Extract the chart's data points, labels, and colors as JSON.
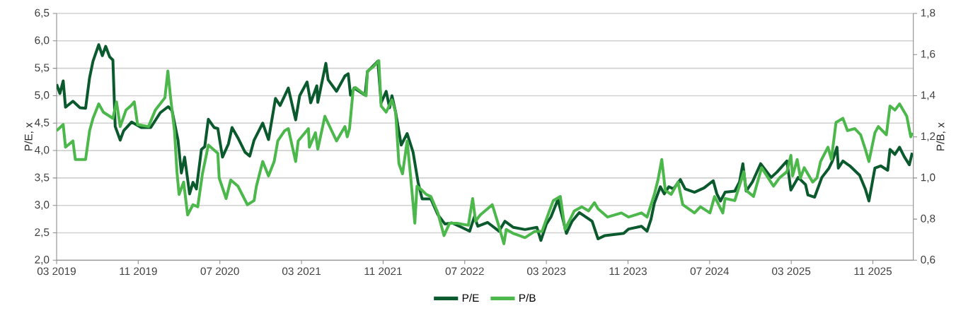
{
  "chart_data": {
    "type": "line",
    "ylabel": "P/E, x",
    "y2label": "P/B, x",
    "xlim": [
      "2019-03-01",
      "2026-02-28"
    ],
    "xticks": [
      {
        "value": "2019-03",
        "label": "03 2019"
      },
      {
        "value": "2019-11",
        "label": "11 2019"
      },
      {
        "value": "2020-07",
        "label": "07 2020"
      },
      {
        "value": "2021-03",
        "label": "03 2021"
      },
      {
        "value": "2021-11",
        "label": "11 2021"
      },
      {
        "value": "2022-07",
        "label": "07 2022"
      },
      {
        "value": "2023-03",
        "label": "03 2023"
      },
      {
        "value": "2023-11",
        "label": "11 2023"
      },
      {
        "value": "2024-07",
        "label": "07 2024"
      },
      {
        "value": "2025-03",
        "label": "03 2025"
      },
      {
        "value": "2025-11",
        "label": "11 2025"
      }
    ],
    "ylim": [
      2.0,
      6.5
    ],
    "yticks": [
      {
        "value": 2.0,
        "label": "2,0"
      },
      {
        "value": 2.5,
        "label": "2,5"
      },
      {
        "value": 3.0,
        "label": "3,0"
      },
      {
        "value": 3.5,
        "label": "3,5"
      },
      {
        "value": 4.0,
        "label": "4,0"
      },
      {
        "value": 4.5,
        "label": "4,5"
      },
      {
        "value": 5.0,
        "label": "5,0"
      },
      {
        "value": 5.5,
        "label": "5,5"
      },
      {
        "value": 6.0,
        "label": "6,0"
      },
      {
        "value": 6.5,
        "label": "6,5"
      }
    ],
    "y2lim": [
      0.6,
      1.8
    ],
    "y2ticks": [
      {
        "value": 0.6,
        "label": "0,6"
      },
      {
        "value": 0.8,
        "label": "0,8"
      },
      {
        "value": 1.0,
        "label": "1,0"
      },
      {
        "value": 1.2,
        "label": "1,2"
      },
      {
        "value": 1.4,
        "label": "1,4"
      },
      {
        "value": 1.6,
        "label": "1,6"
      },
      {
        "value": 1.8,
        "label": "1,8"
      }
    ],
    "grid": "y",
    "legend": "bottom",
    "line_style": "solid",
    "series": [
      {
        "name": "P/E",
        "color": "#0b5a2e",
        "x": [
          "2019-03-01",
          "2019-03-11",
          "2019-03-21",
          "2019-03-28",
          "2019-04-19",
          "2019-05-10",
          "2019-05-27",
          "2019-06-08",
          "2019-06-18",
          "2019-07-05",
          "2019-07-16",
          "2019-07-26",
          "2019-08-07",
          "2019-08-17",
          "2019-08-24",
          "2019-09-08",
          "2019-09-18",
          "2019-10-12",
          "2019-11-10",
          "2019-12-08",
          "2020-01-06",
          "2020-01-30",
          "2020-02-10",
          "2020-02-27",
          "2020-03-08",
          "2020-03-18",
          "2020-04-02",
          "2020-04-12",
          "2020-04-22",
          "2020-05-07",
          "2020-05-17",
          "2020-05-28",
          "2020-06-14",
          "2020-06-25",
          "2020-07-09",
          "2020-07-27",
          "2020-08-07",
          "2020-08-25",
          "2020-09-15",
          "2020-09-29",
          "2020-10-12",
          "2020-11-07",
          "2020-11-24",
          "2020-12-15",
          "2020-12-29",
          "2021-01-23",
          "2021-02-13",
          "2021-02-24",
          "2021-03-18",
          "2021-03-29",
          "2021-04-16",
          "2021-04-19",
          "2021-05-13",
          "2021-05-20",
          "2021-06-14",
          "2021-07-09",
          "2021-07-19",
          "2021-07-26",
          "2021-08-06",
          "2021-09-08",
          "2021-09-15",
          "2021-10-16",
          "2021-10-26",
          "2021-11-10",
          "2021-11-20",
          "2021-11-27",
          "2021-12-08",
          "2021-12-25",
          "2022-01-12",
          "2022-01-30",
          "2022-02-13",
          "2022-02-24",
          "2022-03-22",
          "2022-04-12",
          "2022-05-03",
          "2022-05-24",
          "2022-06-22",
          "2022-07-16",
          "2022-07-30",
          "2022-08-10",
          "2022-09-08",
          "2022-10-12",
          "2022-10-30",
          "2022-11-24",
          "2022-12-29",
          "2023-02-03",
          "2023-02-14",
          "2023-03-01",
          "2023-03-15",
          "2023-04-05",
          "2023-04-30",
          "2023-05-17",
          "2023-06-08",
          "2023-07-16",
          "2023-08-03",
          "2023-08-24",
          "2023-10-19",
          "2023-11-03",
          "2023-12-11",
          "2023-12-28",
          "2024-01-09",
          "2024-01-19",
          "2024-02-06",
          "2024-02-17",
          "2024-03-01",
          "2024-03-15",
          "2024-04-05",
          "2024-04-19",
          "2024-05-17",
          "2024-06-15",
          "2024-07-12",
          "2024-07-23",
          "2024-08-03",
          "2024-08-17",
          "2024-09-15",
          "2024-09-29",
          "2024-10-09",
          "2024-10-19",
          "2024-11-07",
          "2024-12-01",
          "2025-01-02",
          "2025-01-20",
          "2025-02-17",
          "2025-02-28",
          "2025-03-22",
          "2025-04-13",
          "2025-04-20",
          "2025-05-10",
          "2025-06-01",
          "2025-06-22",
          "2025-07-02",
          "2025-07-16",
          "2025-07-20",
          "2025-08-03",
          "2025-08-24",
          "2025-09-22",
          "2025-10-09",
          "2025-10-20",
          "2025-11-07",
          "2025-11-24",
          "2025-12-15",
          "2025-12-22",
          "2026-01-06",
          "2026-01-20",
          "2026-02-03",
          "2026-02-17",
          "2026-02-25"
        ],
        "values": [
          5.21,
          5.04,
          5.27,
          4.79,
          4.9,
          4.78,
          4.77,
          5.33,
          5.63,
          5.93,
          5.73,
          5.9,
          5.71,
          5.65,
          4.44,
          4.19,
          4.36,
          4.52,
          4.42,
          4.42,
          4.69,
          4.8,
          4.73,
          4.19,
          3.59,
          3.88,
          3.21,
          3.42,
          3.3,
          4.02,
          4.07,
          4.57,
          4.42,
          4.4,
          3.88,
          4.12,
          4.42,
          4.23,
          3.97,
          3.9,
          4.19,
          4.5,
          4.2,
          4.95,
          4.82,
          5.14,
          4.56,
          5.0,
          5.25,
          4.87,
          5.18,
          4.88,
          5.59,
          5.29,
          5.08,
          5.36,
          5.4,
          5.01,
          5.14,
          5.01,
          5.44,
          5.63,
          4.87,
          5.08,
          4.78,
          5.0,
          4.7,
          4.1,
          4.31,
          3.97,
          3.42,
          3.12,
          3.12,
          2.83,
          2.66,
          2.68,
          2.6,
          2.53,
          2.79,
          2.62,
          2.69,
          2.53,
          2.71,
          2.6,
          2.56,
          2.6,
          2.36,
          2.66,
          2.79,
          3.11,
          2.49,
          2.71,
          2.87,
          2.71,
          2.39,
          2.45,
          2.49,
          2.57,
          2.62,
          2.53,
          2.75,
          3.04,
          3.34,
          3.21,
          3.34,
          3.3,
          3.47,
          3.3,
          3.24,
          3.32,
          3.45,
          3.21,
          3.08,
          3.24,
          3.26,
          3.43,
          3.76,
          3.26,
          3.43,
          3.76,
          3.51,
          3.61,
          3.81,
          3.28,
          3.51,
          3.38,
          3.19,
          3.15,
          3.51,
          3.68,
          3.81,
          4.06,
          3.68,
          3.81,
          3.72,
          3.55,
          3.3,
          3.08,
          3.68,
          3.72,
          3.64,
          4.02,
          3.93,
          4.06,
          3.89,
          3.74,
          3.96
        ]
      },
      {
        "name": "P/B",
        "color": "#4cb84c",
        "axis": "y2",
        "x": [
          "2019-03-01",
          "2019-03-21",
          "2019-03-28",
          "2019-04-19",
          "2019-04-26",
          "2019-05-27",
          "2019-06-08",
          "2019-06-18",
          "2019-07-05",
          "2019-07-19",
          "2019-08-17",
          "2019-08-28",
          "2019-09-08",
          "2019-09-25",
          "2019-10-09",
          "2019-10-20",
          "2019-10-30",
          "2019-12-01",
          "2019-12-22",
          "2020-01-20",
          "2020-01-29",
          "2020-02-06",
          "2020-02-17",
          "2020-02-24",
          "2020-03-01",
          "2020-03-15",
          "2020-03-27",
          "2020-04-12",
          "2020-04-26",
          "2020-05-10",
          "2020-05-28",
          "2020-06-25",
          "2020-06-29",
          "2020-07-20",
          "2020-08-03",
          "2020-08-25",
          "2020-09-22",
          "2020-10-12",
          "2020-10-19",
          "2020-11-07",
          "2020-11-24",
          "2020-12-11",
          "2020-12-22",
          "2021-01-12",
          "2021-01-23",
          "2021-02-13",
          "2021-02-20",
          "2021-03-22",
          "2021-03-25",
          "2021-04-12",
          "2021-04-19",
          "2021-05-10",
          "2021-06-14",
          "2021-07-09",
          "2021-07-16",
          "2021-07-23",
          "2021-08-03",
          "2021-08-10",
          "2021-09-11",
          "2021-09-15",
          "2021-10-02",
          "2021-10-19",
          "2021-10-26",
          "2021-11-10",
          "2021-11-27",
          "2021-12-08",
          "2021-12-18",
          "2021-12-29",
          "2022-01-12",
          "2022-01-23",
          "2022-02-04",
          "2022-02-10",
          "2022-02-24",
          "2022-03-08",
          "2022-03-22",
          "2022-04-12",
          "2022-04-30",
          "2022-05-17",
          "2022-06-08",
          "2022-07-12",
          "2022-07-25",
          "2022-08-03",
          "2022-08-17",
          "2022-09-08",
          "2022-09-22",
          "2022-10-09",
          "2022-10-27",
          "2022-11-03",
          "2022-11-24",
          "2022-12-29",
          "2023-01-27",
          "2023-02-17",
          "2023-03-08",
          "2023-03-22",
          "2023-04-12",
          "2023-04-26",
          "2023-05-24",
          "2023-06-15",
          "2023-07-05",
          "2023-07-23",
          "2023-08-03",
          "2023-09-01",
          "2023-10-12",
          "2023-11-03",
          "2023-12-11",
          "2023-12-28",
          "2024-01-19",
          "2024-01-30",
          "2024-02-10",
          "2024-02-20",
          "2024-03-08",
          "2024-03-29",
          "2024-04-12",
          "2024-05-17",
          "2024-06-04",
          "2024-07-02",
          "2024-07-16",
          "2024-08-10",
          "2024-08-17",
          "2024-09-15",
          "2024-10-12",
          "2024-10-19",
          "2024-11-10",
          "2024-12-04",
          "2025-01-09",
          "2025-01-27",
          "2025-02-17",
          "2025-02-28",
          "2025-03-05",
          "2025-03-19",
          "2025-03-29",
          "2025-04-09",
          "2025-05-04",
          "2025-05-17",
          "2025-05-28",
          "2025-06-19",
          "2025-06-29",
          "2025-07-13",
          "2025-08-03",
          "2025-08-17",
          "2025-09-08",
          "2025-09-25",
          "2025-10-09",
          "2025-10-20",
          "2025-11-07",
          "2025-11-17",
          "2025-12-11",
          "2025-12-22",
          "2026-01-06",
          "2026-01-20",
          "2026-02-10",
          "2026-02-21",
          "2026-02-25"
        ],
        "values": [
          1.23,
          1.26,
          1.15,
          1.18,
          1.09,
          1.09,
          1.23,
          1.29,
          1.36,
          1.32,
          1.29,
          1.37,
          1.25,
          1.33,
          1.35,
          1.37,
          1.26,
          1.25,
          1.33,
          1.39,
          1.52,
          1.39,
          1.23,
          1.03,
          0.92,
          0.98,
          0.82,
          0.87,
          0.86,
          1.02,
          1.16,
          1.12,
          1.0,
          0.9,
          0.99,
          0.96,
          0.87,
          0.89,
          0.96,
          1.08,
          1.01,
          1.08,
          1.18,
          1.23,
          1.24,
          1.08,
          1.18,
          1.24,
          1.15,
          1.22,
          1.14,
          1.3,
          1.18,
          1.25,
          1.2,
          1.24,
          1.43,
          1.44,
          1.4,
          1.52,
          1.54,
          1.57,
          1.35,
          1.32,
          1.38,
          1.32,
          1.07,
          1.02,
          1.18,
          1.0,
          0.78,
          0.96,
          0.94,
          0.92,
          0.91,
          0.83,
          0.72,
          0.78,
          0.78,
          0.77,
          0.9,
          0.79,
          0.82,
          0.85,
          0.87,
          0.78,
          0.68,
          0.75,
          0.73,
          0.71,
          0.74,
          0.74,
          0.83,
          0.89,
          0.91,
          0.75,
          0.84,
          0.86,
          0.84,
          0.88,
          0.85,
          0.81,
          0.83,
          0.81,
          0.83,
          0.81,
          0.92,
          0.99,
          1.09,
          0.94,
          0.92,
          0.98,
          0.87,
          0.83,
          0.86,
          0.83,
          0.91,
          0.83,
          0.9,
          0.89,
          1.03,
          0.94,
          0.91,
          1.05,
          0.96,
          1.0,
          1.03,
          1.11,
          1.01,
          1.09,
          1.0,
          1.05,
          0.98,
          1.0,
          1.08,
          1.15,
          1.09,
          1.27,
          1.29,
          1.23,
          1.24,
          1.21,
          1.14,
          1.08,
          1.22,
          1.25,
          1.21,
          1.35,
          1.33,
          1.36,
          1.3,
          1.2,
          1.22
        ]
      }
    ]
  }
}
